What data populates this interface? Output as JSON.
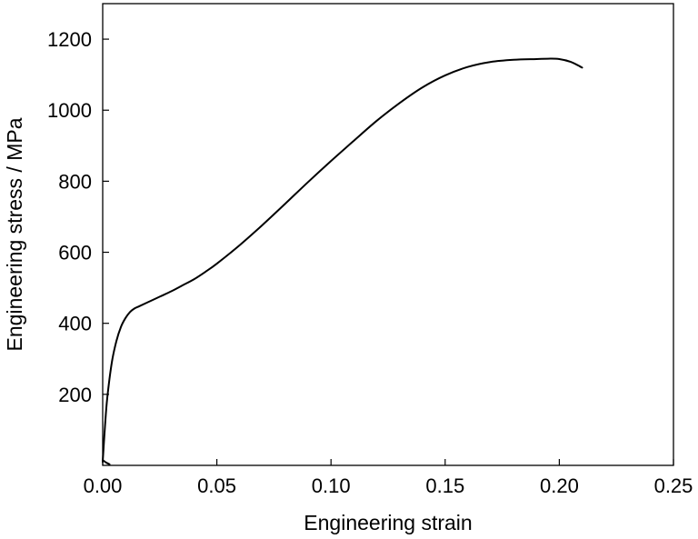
{
  "chart_data": {
    "type": "line",
    "title": "",
    "xlabel": "Engineering strain",
    "ylabel": "Engineering stress / MPa",
    "xlim": [
      0.0,
      0.25
    ],
    "ylim": [
      0,
      1300
    ],
    "xticks": [
      0.0,
      0.05,
      0.1,
      0.15,
      0.2,
      0.25
    ],
    "xtick_labels": [
      "0.00",
      "0.05",
      "0.10",
      "0.15",
      "0.20",
      "0.25"
    ],
    "yticks": [
      200,
      400,
      600,
      800,
      1000,
      1200
    ],
    "ytick_labels": [
      "200",
      "400",
      "600",
      "800",
      "1000",
      "1200"
    ],
    "grid": false,
    "legend": false,
    "series": [
      {
        "color": "#000000",
        "x": [
          0.0,
          0.001,
          0.002,
          0.004,
          0.006,
          0.008,
          0.01,
          0.012,
          0.014,
          0.016,
          0.02,
          0.025,
          0.03,
          0.035,
          0.04,
          0.045,
          0.05,
          0.06,
          0.07,
          0.08,
          0.09,
          0.1,
          0.11,
          0.12,
          0.13,
          0.14,
          0.15,
          0.16,
          0.17,
          0.18,
          0.19,
          0.195,
          0.2,
          0.205,
          0.21
        ],
        "y": [
          10,
          110,
          190,
          290,
          350,
          390,
          415,
          432,
          442,
          448,
          460,
          475,
          490,
          507,
          524,
          545,
          568,
          620,
          677,
          737,
          798,
          857,
          914,
          970,
          1020,
          1064,
          1098,
          1122,
          1136,
          1142,
          1144,
          1145,
          1144,
          1136,
          1120
        ]
      },
      {
        "color": "#000000",
        "x": [
          0.0,
          0.0015,
          0.003
        ],
        "y": [
          15,
          8,
          3
        ]
      }
    ]
  }
}
